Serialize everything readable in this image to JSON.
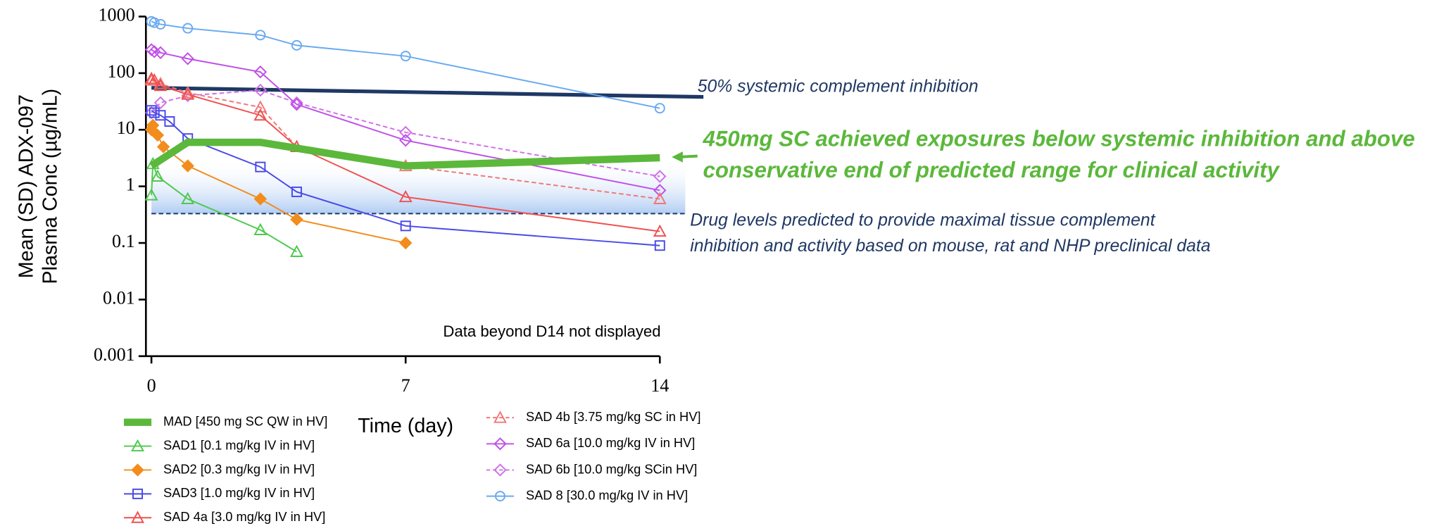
{
  "chart_data": {
    "type": "line",
    "log_scale_y": true,
    "y_label": [
      "Mean (SD) ADX-097",
      "Plasma Conc (µg/mL)"
    ],
    "x_label": "Time (day)",
    "note": "Data beyond D14 not displayed",
    "xlim": [
      0,
      14
    ],
    "xticks": [
      0,
      7,
      14
    ],
    "ylim": [
      0.001,
      1000
    ],
    "yticks": [
      0.001,
      0.01,
      0.1,
      1,
      10,
      100,
      1000
    ],
    "series": [
      {
        "name": "MAD [450 mg SC QW in HV]",
        "color": "#5bb83b",
        "line_width": 8,
        "marker": "none",
        "dashed": false,
        "x": [
          0,
          1,
          3,
          7,
          14
        ],
        "values": [
          2.3,
          6,
          6,
          2.3,
          3.2
        ]
      },
      {
        "name": "SAD1 [0.1 mg/kg IV in HV]",
        "color": "#4ec94e",
        "line_width": 1.5,
        "marker": "triangle",
        "dashed": false,
        "x": [
          0,
          0.04,
          0.17,
          1,
          3,
          4
        ],
        "values": [
          0.7,
          2.5,
          1.5,
          0.6,
          0.17,
          0.07
        ]
      },
      {
        "name": "SAD2 [0.3 mg/kg IV in HV]",
        "color": "#f28c1c",
        "line_width": 1.5,
        "marker": "diamond-filled",
        "dashed": false,
        "x": [
          0,
          0.04,
          0.17,
          0.33,
          1,
          3,
          4,
          7
        ],
        "values": [
          10,
          12,
          8,
          5,
          2.3,
          0.6,
          0.26,
          0.1
        ]
      },
      {
        "name": "SAD3 [1.0 mg/kg IV in HV]",
        "color": "#4a4ae8",
        "line_width": 1.5,
        "marker": "square",
        "dashed": false,
        "x": [
          0,
          0.08,
          0.25,
          0.5,
          1,
          3,
          4,
          7,
          14
        ],
        "values": [
          22,
          20,
          18,
          14,
          7,
          2.2,
          0.8,
          0.2,
          0.09
        ]
      },
      {
        "name": "SAD 4a [3.0 mg/kg IV in HV]",
        "color": "#f05050",
        "line_width": 1.5,
        "marker": "triangle",
        "dashed": false,
        "x": [
          0,
          0.08,
          0.25,
          1,
          3,
          4,
          7,
          14
        ],
        "values": [
          80,
          75,
          60,
          42,
          18,
          5,
          0.65,
          0.16
        ]
      },
      {
        "name": "SAD 4b [3.75 mg/kg SC in HV]",
        "color": "#f07878",
        "line_width": 1.5,
        "marker": "triangle",
        "dashed": true,
        "x": [
          0,
          0.25,
          1,
          3,
          4,
          7,
          14
        ],
        "values": [
          75,
          65,
          45,
          25,
          5,
          2.3,
          0.6
        ]
      },
      {
        "name": "SAD 6a [10.0 mg/kg IV in HV]",
        "color": "#c050e8",
        "line_width": 1.5,
        "marker": "diamond",
        "dashed": false,
        "x": [
          0,
          0.08,
          0.25,
          1,
          3,
          4,
          7,
          14
        ],
        "values": [
          260,
          240,
          230,
          180,
          105,
          28,
          6.5,
          0.85
        ]
      },
      {
        "name": "SAD 6b [10.0 mg/kg SCin HV]",
        "color": "#d070e8",
        "line_width": 1.5,
        "marker": "diamond",
        "dashed": true,
        "x": [
          0,
          0.25,
          1,
          3,
          4,
          7,
          14
        ],
        "values": [
          20,
          30,
          40,
          50,
          30,
          9,
          1.5
        ]
      },
      {
        "name": "SAD 8 [30.0 mg/kg IV in HV]",
        "color": "#6aaaf0",
        "line_width": 1.5,
        "marker": "circle",
        "dashed": false,
        "x": [
          0,
          0.08,
          0.25,
          1,
          3,
          4,
          7,
          14
        ],
        "values": [
          820,
          780,
          730,
          620,
          470,
          310,
          200,
          24
        ]
      }
    ],
    "shaded_band": {
      "x": [
        0,
        14.7
      ],
      "values": [
        0.33,
        3
      ],
      "color": "#9dc0f0"
    },
    "reference_lines": [
      {
        "label": [
          "50% systemic complement inhibition"
        ],
        "color": "#1f3864",
        "dashed": false,
        "x": [
          0,
          15.2
        ],
        "values": [
          55,
          38
        ]
      },
      {
        "label": [
          "Drug levels predicted to provide maximal tissue complement",
          "inhibition and activity based on mouse, rat and NHP preclinical data"
        ],
        "color": "#1f3864",
        "dashed": true,
        "x": [
          0,
          14.7
        ],
        "values": [
          0.33,
          0.33
        ]
      }
    ],
    "callout": {
      "lines": [
        "450mg SC achieved exposures below systemic inhibition and above",
        "conservative end of predicted range for clinical activity"
      ],
      "color": "#5bb83b"
    }
  }
}
